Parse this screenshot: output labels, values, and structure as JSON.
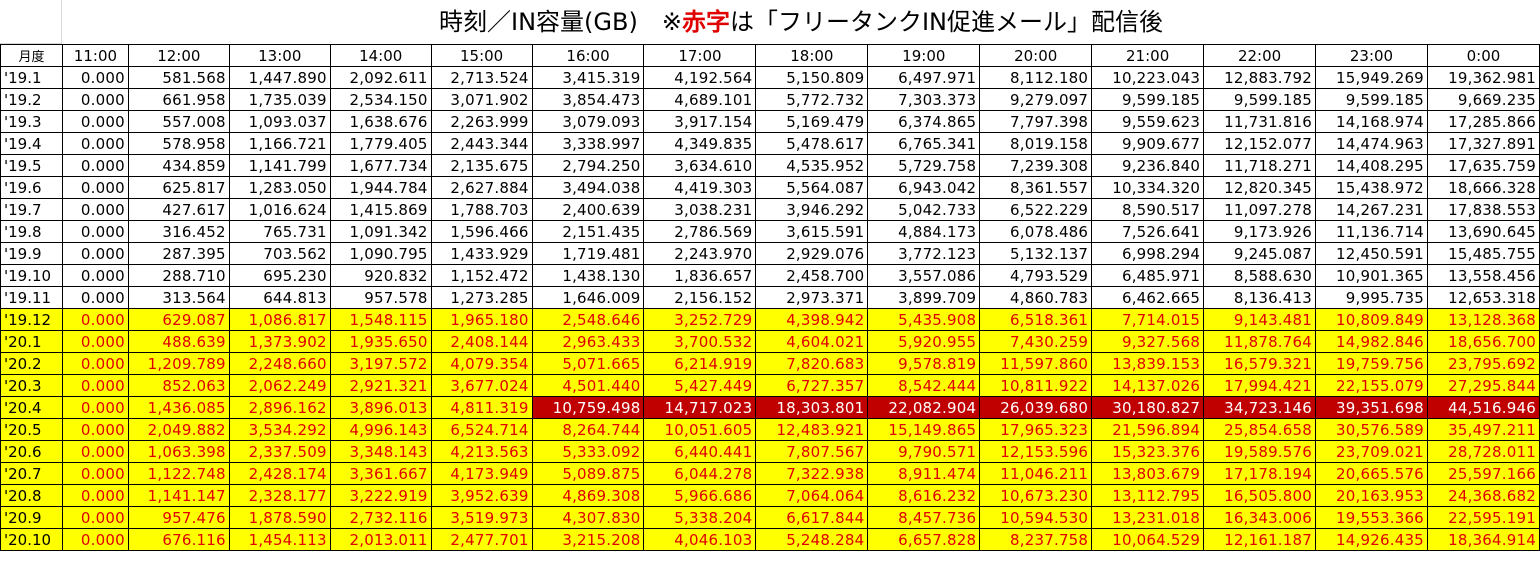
{
  "title": {
    "part1": "時刻／IN容量(GB)　※",
    "red": "赤字",
    "part2": "は「フリータンクIN促進メール」配信後"
  },
  "header": {
    "month_label": "月度",
    "hours": [
      "11:00",
      "12:00",
      "13:00",
      "14:00",
      "15:00",
      "16:00",
      "17:00",
      "18:00",
      "19:00",
      "20:00",
      "21:00",
      "22:00",
      "23:00",
      "0:00"
    ]
  },
  "rows": [
    {
      "month": "'19.1",
      "values": [
        "0.000",
        "581.568",
        "1,447.890",
        "2,092.611",
        "2,713.524",
        "3,415.319",
        "4,192.564",
        "5,150.809",
        "6,497.971",
        "8,112.180",
        "10,223.043",
        "12,883.792",
        "15,949.269",
        "19,362.981"
      ]
    },
    {
      "month": "'19.2",
      "values": [
        "0.000",
        "661.958",
        "1,735.039",
        "2,534.150",
        "3,071.902",
        "3,854.473",
        "4,689.101",
        "5,772.732",
        "7,303.373",
        "9,279.097",
        "9,599.185",
        "9,599.185",
        "9,599.185",
        "9,669.235"
      ]
    },
    {
      "month": "'19.3",
      "values": [
        "0.000",
        "557.008",
        "1,093.037",
        "1,638.676",
        "2,263.999",
        "3,079.093",
        "3,917.154",
        "5,169.479",
        "6,374.865",
        "7,797.398",
        "9,559.623",
        "11,731.816",
        "14,168.974",
        "17,285.866"
      ]
    },
    {
      "month": "'19.4",
      "values": [
        "0.000",
        "578.958",
        "1,166.721",
        "1,779.405",
        "2,443.344",
        "3,338.997",
        "4,349.835",
        "5,478.617",
        "6,765.341",
        "8,019.158",
        "9,909.677",
        "12,152.077",
        "14,474.963",
        "17,327.891"
      ]
    },
    {
      "month": "'19.5",
      "values": [
        "0.000",
        "434.859",
        "1,141.799",
        "1,677.734",
        "2,135.675",
        "2,794.250",
        "3,634.610",
        "4,535.952",
        "5,729.758",
        "7,239.308",
        "9,236.840",
        "11,718.271",
        "14,408.295",
        "17,635.759"
      ]
    },
    {
      "month": "'19.6",
      "values": [
        "0.000",
        "625.817",
        "1,283.050",
        "1,944.784",
        "2,627.884",
        "3,494.038",
        "4,419.303",
        "5,564.087",
        "6,943.042",
        "8,361.557",
        "10,334.320",
        "12,820.345",
        "15,438.972",
        "18,666.328"
      ]
    },
    {
      "month": "'19.7",
      "values": [
        "0.000",
        "427.617",
        "1,016.624",
        "1,415.869",
        "1,788.703",
        "2,400.639",
        "3,038.231",
        "3,946.292",
        "5,042.733",
        "6,522.229",
        "8,590.517",
        "11,097.278",
        "14,267.231",
        "17,838.553"
      ]
    },
    {
      "month": "'19.8",
      "values": [
        "0.000",
        "316.452",
        "765.731",
        "1,091.342",
        "1,596.466",
        "2,151.435",
        "2,786.569",
        "3,615.591",
        "4,884.173",
        "6,078.486",
        "7,526.641",
        "9,173.926",
        "11,136.714",
        "13,690.645"
      ]
    },
    {
      "month": "'19.9",
      "values": [
        "0.000",
        "287.395",
        "703.562",
        "1,090.795",
        "1,433.929",
        "1,719.481",
        "2,243.970",
        "2,929.076",
        "3,772.123",
        "5,132.137",
        "6,998.294",
        "9,245.087",
        "12,450.591",
        "15,485.755"
      ]
    },
    {
      "month": "'19.10",
      "values": [
        "0.000",
        "288.710",
        "695.230",
        "920.832",
        "1,152.472",
        "1,438.130",
        "1,836.657",
        "2,458.700",
        "3,557.086",
        "4,793.529",
        "6,485.971",
        "8,588.630",
        "10,901.365",
        "13,558.456"
      ]
    },
    {
      "month": "'19.11",
      "values": [
        "0.000",
        "313.564",
        "644.813",
        "957.578",
        "1,273.285",
        "1,646.009",
        "2,156.152",
        "2,973.371",
        "3,899.709",
        "4,860.783",
        "6,462.665",
        "8,136.413",
        "9,995.735",
        "12,653.318"
      ]
    },
    {
      "month": "'19.12",
      "highlight": true,
      "values": [
        "0.000",
        "629.087",
        "1,086.817",
        "1,548.115",
        "1,965.180",
        "2,548.646",
        "3,252.729",
        "4,398.942",
        "5,435.908",
        "6,518.361",
        "7,714.015",
        "9,143.481",
        "10,809.849",
        "13,128.368"
      ]
    },
    {
      "month": "'20.1",
      "highlight": true,
      "values": [
        "0.000",
        "488.639",
        "1,373.902",
        "1,935.650",
        "2,408.144",
        "2,963.433",
        "3,700.532",
        "4,604.021",
        "5,920.955",
        "7,430.259",
        "9,327.568",
        "11,878.764",
        "14,982.846",
        "18,656.700"
      ]
    },
    {
      "month": "'20.2",
      "highlight": true,
      "values": [
        "0.000",
        "1,209.789",
        "2,248.660",
        "3,197.572",
        "4,079.354",
        "5,071.665",
        "6,214.919",
        "7,820.683",
        "9,578.819",
        "11,597.860",
        "13,839.153",
        "16,579.321",
        "19,759.756",
        "23,795.692"
      ]
    },
    {
      "month": "'20.3",
      "highlight": true,
      "values": [
        "0.000",
        "852.063",
        "2,062.249",
        "2,921.321",
        "3,677.024",
        "4,501.440",
        "5,427.449",
        "6,727.357",
        "8,542.444",
        "10,811.922",
        "14,137.026",
        "17,994.421",
        "22,155.079",
        "27,295.844"
      ]
    },
    {
      "month": "'20.4",
      "highlight": true,
      "dark_from": 5,
      "values": [
        "0.000",
        "1,436.085",
        "2,896.162",
        "3,896.013",
        "4,811.319",
        "10,759.498",
        "14,717.023",
        "18,303.801",
        "22,082.904",
        "26,039.680",
        "30,180.827",
        "34,723.146",
        "39,351.698",
        "44,516.946"
      ]
    },
    {
      "month": "'20.5",
      "highlight": true,
      "values": [
        "0.000",
        "2,049.882",
        "3,534.292",
        "4,996.143",
        "6,524.714",
        "8,264.744",
        "10,051.605",
        "12,483.921",
        "15,149.865",
        "17,965.323",
        "21,596.894",
        "25,854.658",
        "30,576.589",
        "35,497.211"
      ]
    },
    {
      "month": "'20.6",
      "highlight": true,
      "values": [
        "0.000",
        "1,063.398",
        "2,337.509",
        "3,348.143",
        "4,213.563",
        "5,333.092",
        "6,440.441",
        "7,807.567",
        "9,790.571",
        "12,153.596",
        "15,323.376",
        "19,589.576",
        "23,709.021",
        "28,728.011"
      ]
    },
    {
      "month": "'20.7",
      "highlight": true,
      "values": [
        "0.000",
        "1,122.748",
        "2,428.174",
        "3,361.667",
        "4,173.949",
        "5,089.875",
        "6,044.278",
        "7,322.938",
        "8,911.474",
        "11,046.211",
        "13,803.679",
        "17,178.194",
        "20,665.576",
        "25,597.166"
      ]
    },
    {
      "month": "'20.8",
      "highlight": true,
      "values": [
        "0.000",
        "1,141.147",
        "2,328.177",
        "3,222.919",
        "3,952.639",
        "4,869.308",
        "5,966.686",
        "7,064.064",
        "8,616.232",
        "10,673.230",
        "13,112.795",
        "16,505.800",
        "20,163.953",
        "24,368.682"
      ]
    },
    {
      "month": "'20.9",
      "highlight": true,
      "values": [
        "0.000",
        "957.476",
        "1,878.590",
        "2,732.116",
        "3,519.973",
        "4,307.830",
        "5,338.204",
        "6,617.844",
        "8,457.736",
        "10,594.530",
        "13,231.018",
        "16,343.006",
        "19,553.366",
        "22,595.191"
      ]
    },
    {
      "month": "'20.10",
      "highlight": true,
      "values": [
        "0.000",
        "676.116",
        "1,454.113",
        "2,013.011",
        "2,477.701",
        "3,215.208",
        "4,046.103",
        "5,248.284",
        "6,657.828",
        "8,237.758",
        "10,064.529",
        "12,161.187",
        "14,926.435",
        "18,364.914"
      ]
    }
  ],
  "colors": {
    "highlight_fill": "#ffff00",
    "highlight_text": "#e00000",
    "dark_fill": "#c00000",
    "dark_text": "#ffffff"
  }
}
